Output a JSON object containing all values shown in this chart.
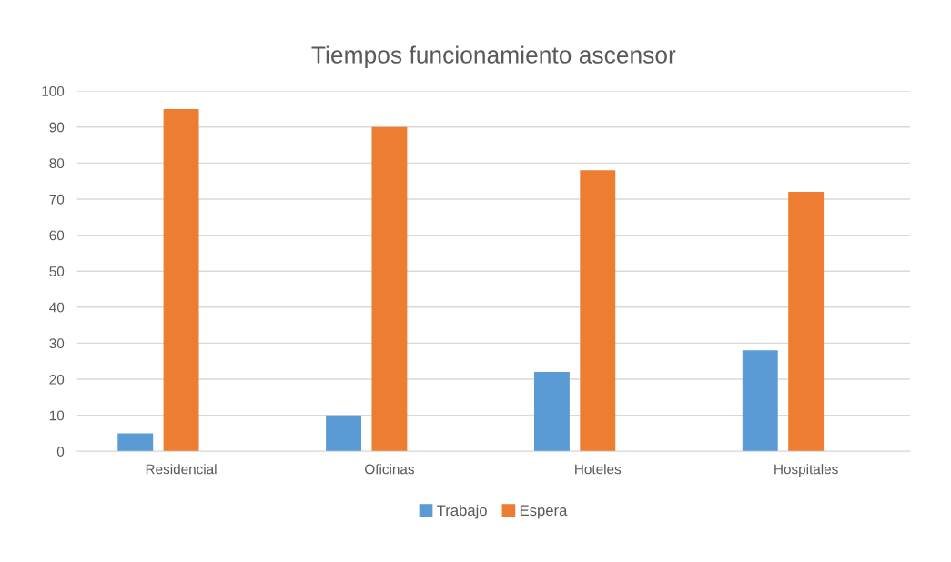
{
  "chart_data": {
    "type": "bar",
    "title": "Tiempos funcionamiento ascensor",
    "categories": [
      "Residencial",
      "Oficinas",
      "Hoteles",
      "Hospitales"
    ],
    "series": [
      {
        "name": "Trabajo",
        "color": "#5b9bd5",
        "values": [
          5,
          10,
          22,
          28
        ]
      },
      {
        "name": "Espera",
        "color": "#ed7d31",
        "values": [
          95,
          90,
          78,
          72
        ]
      }
    ],
    "ylim": [
      0,
      100
    ],
    "yticks": [
      0,
      10,
      20,
      30,
      40,
      50,
      60,
      70,
      80,
      90,
      100
    ],
    "grid": "y",
    "legend": "bottom"
  }
}
